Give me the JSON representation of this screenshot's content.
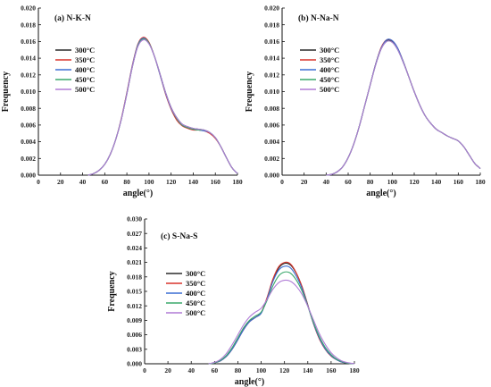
{
  "colors": {
    "300": "#2b2b2b",
    "350": "#d9342b",
    "400": "#3b6fd4",
    "450": "#3aa86b",
    "500": "#b07cd6"
  },
  "chart_data": [
    {
      "type": "line",
      "title": "(a) N-K-N",
      "xlabel": "angle(°)",
      "ylabel": "Frequency",
      "xlim": [
        0,
        180
      ],
      "ylim": [
        0,
        0.02
      ],
      "xticks": [
        "0",
        "20",
        "40",
        "60",
        "80",
        "100",
        "120",
        "140",
        "160",
        "180"
      ],
      "yticks": [
        "0.000",
        "0.002",
        "0.004",
        "0.006",
        "0.008",
        "0.010",
        "0.012",
        "0.014",
        "0.016",
        "0.018",
        "0.020"
      ],
      "legend_position": "upper-left",
      "series": [
        {
          "name": "300°C",
          "color_key": "300",
          "x": [
            45,
            50,
            55,
            60,
            65,
            70,
            75,
            80,
            85,
            90,
            95,
            100,
            105,
            110,
            115,
            120,
            125,
            130,
            135,
            140,
            145,
            150,
            155,
            160,
            165,
            170,
            175,
            180
          ],
          "y": [
            0,
            0.0002,
            0.0006,
            0.0013,
            0.0025,
            0.0043,
            0.0067,
            0.0098,
            0.013,
            0.0155,
            0.0163,
            0.0158,
            0.0142,
            0.0121,
            0.0099,
            0.0081,
            0.0069,
            0.0061,
            0.0058,
            0.0056,
            0.0055,
            0.0054,
            0.0051,
            0.0045,
            0.0034,
            0.0021,
            0.0009,
            0.0002
          ]
        },
        {
          "name": "350°C",
          "color_key": "350",
          "x": [
            45,
            50,
            55,
            60,
            65,
            70,
            75,
            80,
            85,
            90,
            95,
            100,
            105,
            110,
            115,
            120,
            125,
            130,
            135,
            140,
            145,
            150,
            155,
            160,
            165,
            170,
            175,
            180
          ],
          "y": [
            0,
            0.0002,
            0.0006,
            0.0013,
            0.0025,
            0.0043,
            0.0068,
            0.0099,
            0.0132,
            0.0157,
            0.0165,
            0.0159,
            0.0142,
            0.012,
            0.0097,
            0.0079,
            0.0066,
            0.0059,
            0.0056,
            0.0054,
            0.0054,
            0.0053,
            0.005,
            0.0044,
            0.0034,
            0.0021,
            0.0009,
            0.0002
          ]
        },
        {
          "name": "400°C",
          "color_key": "400",
          "x": [
            45,
            50,
            55,
            60,
            65,
            70,
            75,
            80,
            85,
            90,
            95,
            100,
            105,
            110,
            115,
            120,
            125,
            130,
            135,
            140,
            145,
            150,
            155,
            160,
            165,
            170,
            175,
            180
          ],
          "y": [
            0,
            0.0002,
            0.0006,
            0.0013,
            0.0025,
            0.0043,
            0.0067,
            0.0098,
            0.0131,
            0.0156,
            0.0164,
            0.0158,
            0.0142,
            0.012,
            0.0098,
            0.008,
            0.0068,
            0.006,
            0.0057,
            0.0055,
            0.0054,
            0.0053,
            0.0051,
            0.0045,
            0.0034,
            0.0021,
            0.0009,
            0.0002
          ]
        },
        {
          "name": "450°C",
          "color_key": "450",
          "x": [
            45,
            50,
            55,
            60,
            65,
            70,
            75,
            80,
            85,
            90,
            95,
            100,
            105,
            110,
            115,
            120,
            125,
            130,
            135,
            140,
            145,
            150,
            155,
            160,
            165,
            170,
            175,
            180
          ],
          "y": [
            0,
            0.0002,
            0.0006,
            0.0013,
            0.0025,
            0.0043,
            0.0067,
            0.0097,
            0.013,
            0.0155,
            0.0163,
            0.0158,
            0.0142,
            0.0121,
            0.0099,
            0.0081,
            0.0068,
            0.006,
            0.0057,
            0.0055,
            0.0054,
            0.0054,
            0.0051,
            0.0045,
            0.0034,
            0.0021,
            0.0009,
            0.0002
          ]
        },
        {
          "name": "500°C",
          "color_key": "500",
          "x": [
            45,
            50,
            55,
            60,
            65,
            70,
            75,
            80,
            85,
            90,
            95,
            100,
            105,
            110,
            115,
            120,
            125,
            130,
            135,
            140,
            145,
            150,
            155,
            160,
            165,
            170,
            175,
            180
          ],
          "y": [
            0,
            0.0002,
            0.0006,
            0.0013,
            0.0025,
            0.0043,
            0.0067,
            0.0097,
            0.013,
            0.0154,
            0.0162,
            0.0157,
            0.0142,
            0.0121,
            0.0099,
            0.0081,
            0.0069,
            0.0061,
            0.0058,
            0.0056,
            0.0055,
            0.0054,
            0.0051,
            0.0045,
            0.0034,
            0.0021,
            0.0009,
            0.0002
          ]
        }
      ]
    },
    {
      "type": "line",
      "title": "(b) N-Na-N",
      "xlabel": "angle(°)",
      "ylabel": "Frequency",
      "xlim": [
        0,
        180
      ],
      "ylim": [
        0,
        0.02
      ],
      "xticks": [
        "0",
        "20",
        "40",
        "60",
        "80",
        "100",
        "120",
        "140",
        "160",
        "180"
      ],
      "yticks": [
        "0.000",
        "0.002",
        "0.004",
        "0.006",
        "0.008",
        "0.010",
        "0.012",
        "0.014",
        "0.016",
        "0.018",
        "0.020"
      ],
      "legend_position": "upper-left",
      "series": [
        {
          "name": "300°C",
          "color_key": "300",
          "x": [
            40,
            45,
            50,
            55,
            60,
            65,
            70,
            75,
            80,
            85,
            90,
            95,
            100,
            105,
            110,
            115,
            120,
            125,
            130,
            135,
            140,
            145,
            150,
            155,
            160,
            165,
            170,
            175,
            180
          ],
          "y": [
            0,
            0.0001,
            0.0004,
            0.001,
            0.0021,
            0.0037,
            0.0058,
            0.0083,
            0.0108,
            0.0133,
            0.0152,
            0.0161,
            0.016,
            0.0151,
            0.0136,
            0.0118,
            0.01,
            0.0084,
            0.0071,
            0.0062,
            0.0055,
            0.0051,
            0.0047,
            0.0044,
            0.0041,
            0.0034,
            0.0024,
            0.0014,
            0.0008
          ]
        },
        {
          "name": "350°C",
          "color_key": "350",
          "x": [
            40,
            45,
            50,
            55,
            60,
            65,
            70,
            75,
            80,
            85,
            90,
            95,
            100,
            105,
            110,
            115,
            120,
            125,
            130,
            135,
            140,
            145,
            150,
            155,
            160,
            165,
            170,
            175,
            180
          ],
          "y": [
            0,
            0.0001,
            0.0004,
            0.001,
            0.0021,
            0.0037,
            0.0058,
            0.0083,
            0.0108,
            0.0133,
            0.0153,
            0.0162,
            0.0161,
            0.0152,
            0.0136,
            0.0118,
            0.01,
            0.0084,
            0.0071,
            0.0062,
            0.0055,
            0.0051,
            0.0047,
            0.0044,
            0.0041,
            0.0034,
            0.0024,
            0.0014,
            0.0008
          ]
        },
        {
          "name": "400°C",
          "color_key": "400",
          "x": [
            40,
            45,
            50,
            55,
            60,
            65,
            70,
            75,
            80,
            85,
            90,
            95,
            100,
            105,
            110,
            115,
            120,
            125,
            130,
            135,
            140,
            145,
            150,
            155,
            160,
            165,
            170,
            175,
            180
          ],
          "y": [
            0,
            0.0001,
            0.0004,
            0.001,
            0.0021,
            0.0037,
            0.0058,
            0.0083,
            0.0108,
            0.0133,
            0.0152,
            0.0162,
            0.0161,
            0.0152,
            0.0136,
            0.0118,
            0.01,
            0.0084,
            0.0071,
            0.0062,
            0.0055,
            0.0051,
            0.0047,
            0.0044,
            0.0041,
            0.0034,
            0.0024,
            0.0014,
            0.0008
          ]
        },
        {
          "name": "450°C",
          "color_key": "450",
          "x": [
            40,
            45,
            50,
            55,
            60,
            65,
            70,
            75,
            80,
            85,
            90,
            95,
            100,
            105,
            110,
            115,
            120,
            125,
            130,
            135,
            140,
            145,
            150,
            155,
            160,
            165,
            170,
            175,
            180
          ],
          "y": [
            0,
            0.0001,
            0.0004,
            0.001,
            0.0021,
            0.0037,
            0.0058,
            0.0083,
            0.0108,
            0.0132,
            0.0151,
            0.016,
            0.0159,
            0.015,
            0.0135,
            0.0118,
            0.01,
            0.0084,
            0.0071,
            0.0062,
            0.0055,
            0.0051,
            0.0047,
            0.0044,
            0.0041,
            0.0034,
            0.0024,
            0.0014,
            0.0008
          ]
        },
        {
          "name": "500°C",
          "color_key": "500",
          "x": [
            40,
            45,
            50,
            55,
            60,
            65,
            70,
            75,
            80,
            85,
            90,
            95,
            100,
            105,
            110,
            115,
            120,
            125,
            130,
            135,
            140,
            145,
            150,
            155,
            160,
            165,
            170,
            175,
            180
          ],
          "y": [
            0,
            0.0001,
            0.0004,
            0.001,
            0.0021,
            0.0037,
            0.0058,
            0.0083,
            0.0108,
            0.0132,
            0.0151,
            0.016,
            0.0159,
            0.015,
            0.0135,
            0.0118,
            0.01,
            0.0084,
            0.0071,
            0.0062,
            0.0055,
            0.0051,
            0.0047,
            0.0044,
            0.0041,
            0.0034,
            0.0024,
            0.0014,
            0.0008
          ]
        }
      ]
    },
    {
      "type": "line",
      "title": "(c) S-Na-S",
      "xlabel": "angle(°)",
      "ylabel": "Frequency",
      "xlim": [
        0,
        180
      ],
      "ylim": [
        0,
        0.03
      ],
      "xticks": [
        "0",
        "20",
        "40",
        "60",
        "80",
        "100",
        "120",
        "140",
        "160",
        "180"
      ],
      "yticks": [
        "0.000",
        "0.003",
        "0.006",
        "0.009",
        "0.012",
        "0.015",
        "0.018",
        "0.021",
        "0.024",
        "0.027",
        "0.030"
      ],
      "legend_position": "left",
      "series": [
        {
          "name": "300°C",
          "color_key": "300",
          "x": [
            55,
            60,
            65,
            70,
            75,
            80,
            85,
            90,
            95,
            100,
            105,
            110,
            115,
            120,
            125,
            130,
            135,
            140,
            145,
            150,
            155,
            160,
            165,
            170,
            175,
            180
          ],
          "y": [
            0,
            0.0002,
            0.0006,
            0.0015,
            0.003,
            0.005,
            0.0072,
            0.0088,
            0.0096,
            0.0105,
            0.0135,
            0.0172,
            0.0198,
            0.0208,
            0.0205,
            0.0188,
            0.016,
            0.0122,
            0.0083,
            0.0052,
            0.003,
            0.0016,
            0.0008,
            0.0003,
            0.0001,
            0
          ]
        },
        {
          "name": "350°C",
          "color_key": "350",
          "x": [
            55,
            60,
            65,
            70,
            75,
            80,
            85,
            90,
            95,
            100,
            105,
            110,
            115,
            120,
            125,
            130,
            135,
            140,
            145,
            150,
            155,
            160,
            165,
            170,
            175,
            180
          ],
          "y": [
            0,
            0.0002,
            0.0006,
            0.0015,
            0.003,
            0.005,
            0.0071,
            0.0087,
            0.0096,
            0.0106,
            0.0137,
            0.0175,
            0.0201,
            0.021,
            0.0207,
            0.0189,
            0.016,
            0.0121,
            0.0082,
            0.0051,
            0.003,
            0.0016,
            0.0008,
            0.0003,
            0.0001,
            0
          ]
        },
        {
          "name": "400°C",
          "color_key": "400",
          "x": [
            55,
            60,
            65,
            70,
            75,
            80,
            85,
            90,
            95,
            100,
            105,
            110,
            115,
            120,
            125,
            130,
            135,
            140,
            145,
            150,
            155,
            160,
            165,
            170,
            175,
            180
          ],
          "y": [
            0,
            0.0002,
            0.0006,
            0.0015,
            0.003,
            0.005,
            0.0071,
            0.0087,
            0.0096,
            0.0105,
            0.0134,
            0.017,
            0.0194,
            0.0202,
            0.0199,
            0.0182,
            0.0156,
            0.012,
            0.0083,
            0.0053,
            0.0031,
            0.0017,
            0.0008,
            0.0003,
            0.0001,
            0
          ]
        },
        {
          "name": "450°C",
          "color_key": "450",
          "x": [
            55,
            60,
            65,
            70,
            75,
            80,
            85,
            90,
            95,
            100,
            105,
            110,
            115,
            120,
            125,
            130,
            135,
            140,
            145,
            150,
            155,
            160,
            165,
            170,
            175,
            180
          ],
          "y": [
            0,
            0.0002,
            0.0007,
            0.0017,
            0.0033,
            0.0054,
            0.0075,
            0.009,
            0.0099,
            0.0107,
            0.0131,
            0.0161,
            0.0182,
            0.019,
            0.0188,
            0.0174,
            0.0151,
            0.0119,
            0.0085,
            0.0056,
            0.0034,
            0.0019,
            0.0009,
            0.0004,
            0.0001,
            0
          ]
        },
        {
          "name": "500°C",
          "color_key": "500",
          "x": [
            55,
            60,
            65,
            70,
            75,
            80,
            85,
            90,
            95,
            100,
            105,
            110,
            115,
            120,
            125,
            130,
            135,
            140,
            145,
            150,
            155,
            160,
            165,
            170,
            175,
            180
          ],
          "y": [
            0,
            0.0003,
            0.0009,
            0.0021,
            0.0039,
            0.006,
            0.0081,
            0.0097,
            0.0107,
            0.0115,
            0.0133,
            0.0154,
            0.0168,
            0.0173,
            0.0171,
            0.0161,
            0.0144,
            0.0119,
            0.009,
            0.0062,
            0.004,
            0.0023,
            0.0012,
            0.0005,
            0.0002,
            0
          ]
        }
      ]
    }
  ]
}
